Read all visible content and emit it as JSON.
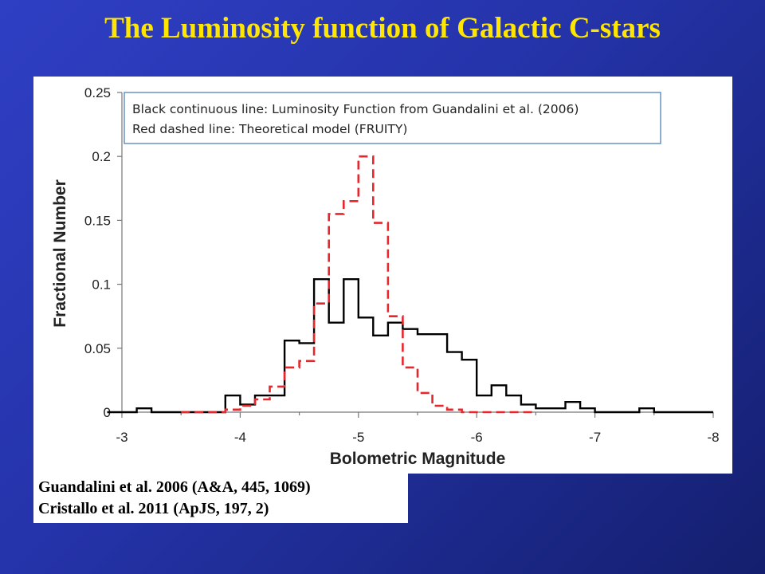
{
  "slide": {
    "title": "The Luminosity function of Galactic C-stars"
  },
  "references": [
    "Guandalini et al. 2006 (A&A, 445, 1069)",
    "Cristallo et al. 2011 (ApJS, 197, 2)"
  ],
  "chart_data": {
    "type": "line",
    "title": "",
    "xlabel": "Bolometric Magnitude",
    "ylabel": "Fractional Number",
    "xlim": [
      -3,
      -8
    ],
    "ylim": [
      0,
      0.25
    ],
    "x_ticks": [
      -3,
      -4,
      -5,
      -6,
      -7,
      -8
    ],
    "x_tick_labels": [
      "-3",
      "-4",
      "-5",
      "-6",
      "-7",
      "-8"
    ],
    "y_ticks": [
      0,
      0.05,
      0.1,
      0.15,
      0.2,
      0.25
    ],
    "y_tick_labels": [
      "0",
      "0.05",
      "0.1",
      "0.15",
      "0.2",
      "0.25"
    ],
    "grid": false,
    "legend_position": "top",
    "legend_entries": [
      "Black continuous line:  Luminosity Function from Guandalini et al. (2006)",
      "Red dashed line:  Theoretical model (FRUITY)"
    ],
    "step": true,
    "bin_width": 0.125,
    "series": [
      {
        "color": "#000000",
        "dash": false,
        "bin_starts": [
          -2.875,
          -3.0,
          -3.125,
          -3.25,
          -3.375,
          -3.5,
          -3.625,
          -3.75,
          -3.875,
          -4.0,
          -4.125,
          -4.25,
          -4.375,
          -4.5,
          -4.625,
          -4.75,
          -4.875,
          -5.0,
          -5.125,
          -5.25,
          -5.375,
          -5.5,
          -5.625,
          -5.75,
          -5.875,
          -6.0,
          -6.125,
          -6.25,
          -6.375,
          -6.5,
          -6.625,
          -6.75,
          -6.875,
          -7.0,
          -7.125,
          -7.25,
          -7.375,
          -7.5,
          -7.625,
          -7.75,
          -7.875
        ],
        "values": [
          0,
          0,
          0.003,
          0,
          0,
          0,
          0,
          0,
          0.013,
          0.006,
          0.013,
          0.013,
          0.056,
          0.054,
          0.104,
          0.07,
          0.104,
          0.074,
          0.06,
          0.07,
          0.065,
          0.061,
          0.061,
          0.047,
          0.041,
          0.013,
          0.021,
          0.013,
          0.006,
          0.003,
          0.003,
          0.008,
          0.003,
          0,
          0,
          0,
          0.003,
          0,
          0,
          0,
          0
        ]
      },
      {
        "color": "#e8262b",
        "dash": true,
        "bin_starts": [
          -3.5,
          -3.625,
          -3.75,
          -3.875,
          -4.0,
          -4.125,
          -4.25,
          -4.375,
          -4.5,
          -4.625,
          -4.75,
          -4.875,
          -5.0,
          -5.125,
          -5.25,
          -5.375,
          -5.5,
          -5.625,
          -5.75,
          -5.875,
          -6.0,
          -6.125,
          -6.25,
          -6.375
        ],
        "values": [
          0,
          0,
          0,
          0.002,
          0.005,
          0.01,
          0.02,
          0.035,
          0.04,
          0.085,
          0.155,
          0.165,
          0.2,
          0.148,
          0.075,
          0.035,
          0.015,
          0.005,
          0.002,
          0,
          0,
          0,
          0,
          0
        ]
      }
    ]
  }
}
